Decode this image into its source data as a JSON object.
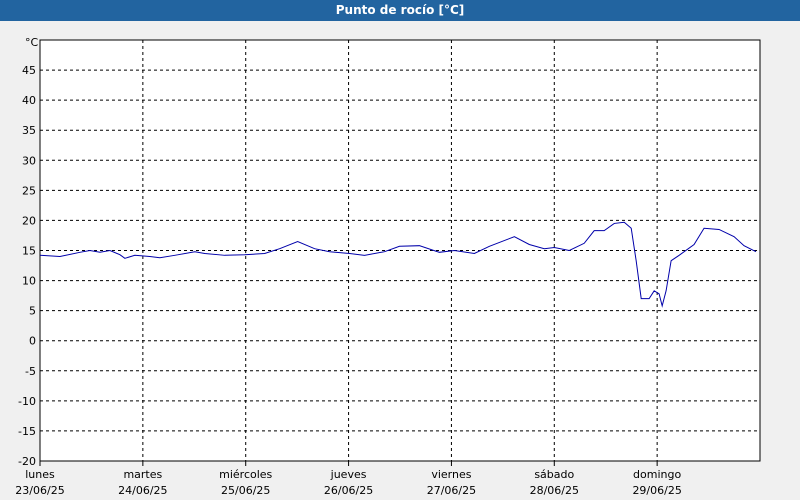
{
  "chart_data": {
    "type": "line",
    "title": "Punto de rocío [°C]",
    "y_unit": "°C",
    "ylim": [
      -20,
      50
    ],
    "yticks": [
      -20,
      -15,
      -10,
      -5,
      0,
      5,
      10,
      15,
      20,
      25,
      30,
      35,
      40,
      45
    ],
    "xlim": [
      0,
      7
    ],
    "xticks": [
      {
        "value": 0,
        "label": "lunes"
      },
      {
        "value": 1,
        "label": "martes"
      },
      {
        "value": 2,
        "label": "miércoles"
      },
      {
        "value": 3,
        "label": "jueves"
      },
      {
        "value": 4,
        "label": "viernes"
      },
      {
        "value": 5,
        "label": "sábado"
      },
      {
        "value": 6,
        "label": "domingo"
      }
    ],
    "xtick_dates": [
      "23/06/25",
      "24/06/25",
      "25/06/25",
      "26/06/25",
      "27/06/25",
      "28/06/25",
      "29/06/25"
    ],
    "grid": true,
    "series": [
      {
        "color": "#0000aa",
        "x": [
          0,
          0.194,
          0.388,
          0.485,
          0.583,
          0.68,
          0.777,
          0.825,
          0.922,
          1.068,
          1.165,
          1.311,
          1.505,
          1.602,
          1.796,
          1.99,
          2.184,
          2.33,
          2.505,
          2.67,
          2.816,
          3.01,
          3.155,
          3.35,
          3.495,
          3.689,
          3.883,
          4.029,
          4.223,
          4.369,
          4.612,
          4.757,
          4.903,
          5.0,
          5.146,
          5.291,
          5.388,
          5.485,
          5.583,
          5.68,
          5.748,
          5.796,
          5.845,
          5.922,
          5.971,
          6.019,
          6.049,
          6.087,
          6.136,
          6.214,
          6.359,
          6.456,
          6.602,
          6.748,
          6.845,
          6.961
        ],
        "values": [
          14.2,
          14.0,
          14.7,
          15.0,
          14.7,
          15.0,
          14.3,
          13.7,
          14.2,
          14.0,
          13.8,
          14.2,
          14.8,
          14.5,
          14.2,
          14.3,
          14.5,
          15.3,
          16.5,
          15.3,
          14.8,
          14.5,
          14.2,
          14.8,
          15.7,
          15.8,
          14.7,
          15.0,
          14.5,
          15.7,
          17.3,
          16.0,
          15.3,
          15.5,
          15.0,
          16.2,
          18.3,
          18.3,
          19.5,
          19.7,
          18.7,
          13.3,
          7.0,
          7.0,
          8.3,
          7.8,
          5.8,
          8.3,
          13.3,
          14.2,
          16.0,
          18.7,
          18.5,
          17.3,
          15.8,
          14.8
        ]
      }
    ]
  }
}
